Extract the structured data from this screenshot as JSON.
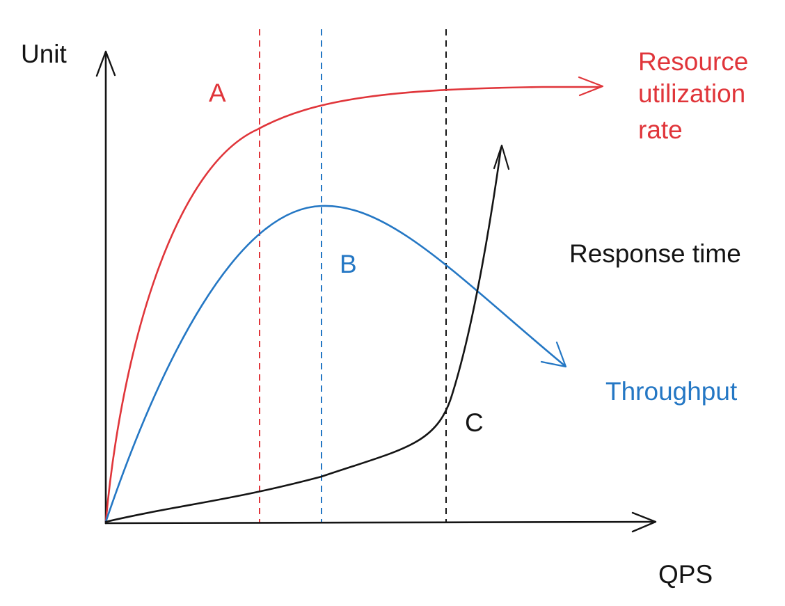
{
  "axes": {
    "y_label": "Unit",
    "x_label": "QPS"
  },
  "curves": {
    "resource": {
      "label_lines": [
        "Resource",
        "utilization",
        "rate"
      ],
      "color": "#e0353a"
    },
    "throughput": {
      "label": "Throughput",
      "color": "#2477c4"
    },
    "response": {
      "label": "Response time",
      "color": "#141414"
    }
  },
  "markers": {
    "a": {
      "label": "A",
      "color": "#e0353a"
    },
    "b": {
      "label": "B",
      "color": "#2477c4"
    },
    "c": {
      "label": "C",
      "color": "#141414"
    }
  },
  "colors": {
    "axis": "#141414",
    "background": "#ffffff"
  }
}
